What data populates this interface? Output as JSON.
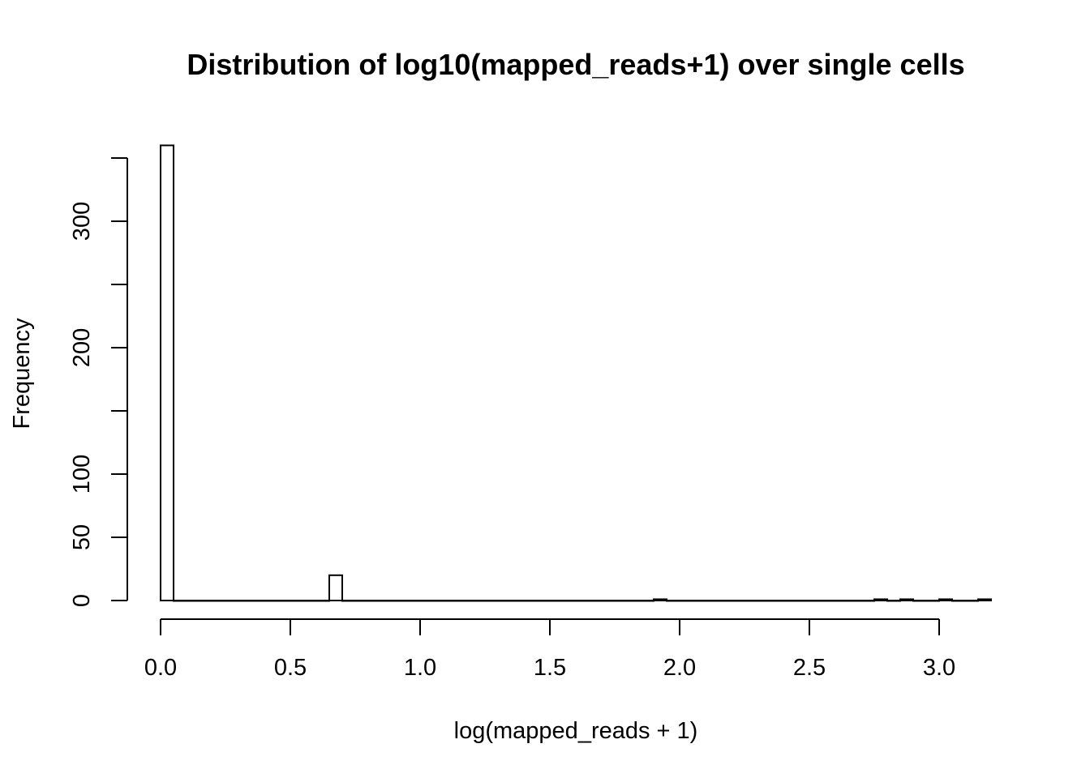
{
  "chart_data": {
    "type": "bar",
    "title": "Distribution of log10(mapped_reads+1) over single cells",
    "xlabel": "log(mapped_reads + 1)",
    "ylabel": "Frequency",
    "bin_width": 0.05,
    "xlim": [
      0,
      3.2
    ],
    "ylim": [
      0,
      360
    ],
    "x_ticks": [
      0,
      0.5,
      1,
      1.5,
      2,
      2.5,
      3
    ],
    "x_tick_labels": [
      "0.0",
      "0.5",
      "1.0",
      "1.5",
      "2.0",
      "2.5",
      "3.0"
    ],
    "y_ticks": [
      0,
      50,
      100,
      150,
      200,
      250,
      300,
      350
    ],
    "y_tick_labels": [
      "0",
      "50",
      "100",
      "",
      "200",
      "",
      "300",
      ""
    ],
    "bins": [
      {
        "start": 0.0,
        "end": 0.05,
        "count": 360
      },
      {
        "start": 0.65,
        "end": 0.7,
        "count": 20
      },
      {
        "start": 1.9,
        "end": 1.95,
        "count": 1
      },
      {
        "start": 2.75,
        "end": 2.8,
        "count": 1
      },
      {
        "start": 2.85,
        "end": 2.9,
        "count": 1
      },
      {
        "start": 3.0,
        "end": 3.05,
        "count": 1
      },
      {
        "start": 3.15,
        "end": 3.2,
        "count": 1
      }
    ],
    "grid": false,
    "legend": "none"
  }
}
